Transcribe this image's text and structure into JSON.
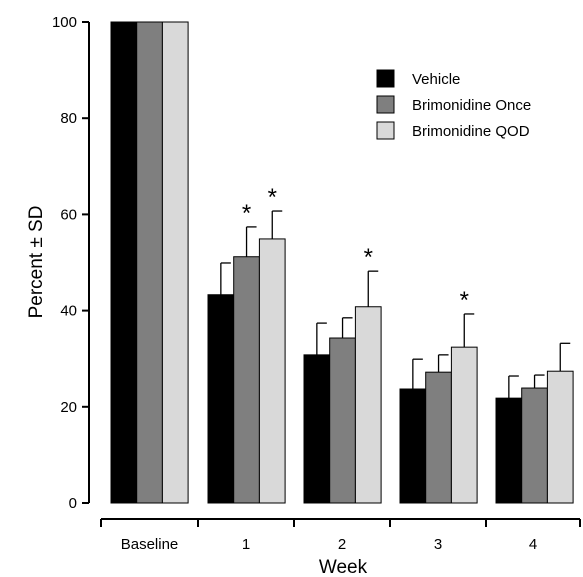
{
  "chart_data": {
    "type": "bar",
    "title": "",
    "xlabel": "Week",
    "ylabel": "Percent ± SD",
    "ylim": [
      0,
      100
    ],
    "yticks": [
      0,
      20,
      40,
      60,
      80,
      100
    ],
    "categories": [
      "Baseline",
      "1",
      "2",
      "3",
      "4"
    ],
    "series": [
      {
        "name": "Vehicle",
        "color": "#000000",
        "values": [
          100,
          43.3,
          30.8,
          23.7,
          21.8
        ],
        "sd": [
          null,
          6.6,
          6.6,
          6.2,
          4.6
        ],
        "significant": [
          false,
          false,
          false,
          false,
          false
        ]
      },
      {
        "name": "Brimonidine Once",
        "color": "#7f7f7f",
        "values": [
          100,
          51.2,
          34.3,
          27.2,
          23.9
        ],
        "sd": [
          null,
          6.2,
          4.2,
          3.6,
          2.7
        ],
        "significant": [
          false,
          true,
          false,
          false,
          false
        ]
      },
      {
        "name": "Brimonidine QOD",
        "color": "#d9d9d9",
        "values": [
          100,
          54.9,
          40.8,
          32.4,
          27.4
        ],
        "sd": [
          null,
          5.8,
          7.4,
          6.9,
          5.8
        ],
        "significant": [
          false,
          true,
          true,
          true,
          false
        ]
      }
    ],
    "significance_marker": "*",
    "legend_position": "top-right",
    "grid": false
  }
}
